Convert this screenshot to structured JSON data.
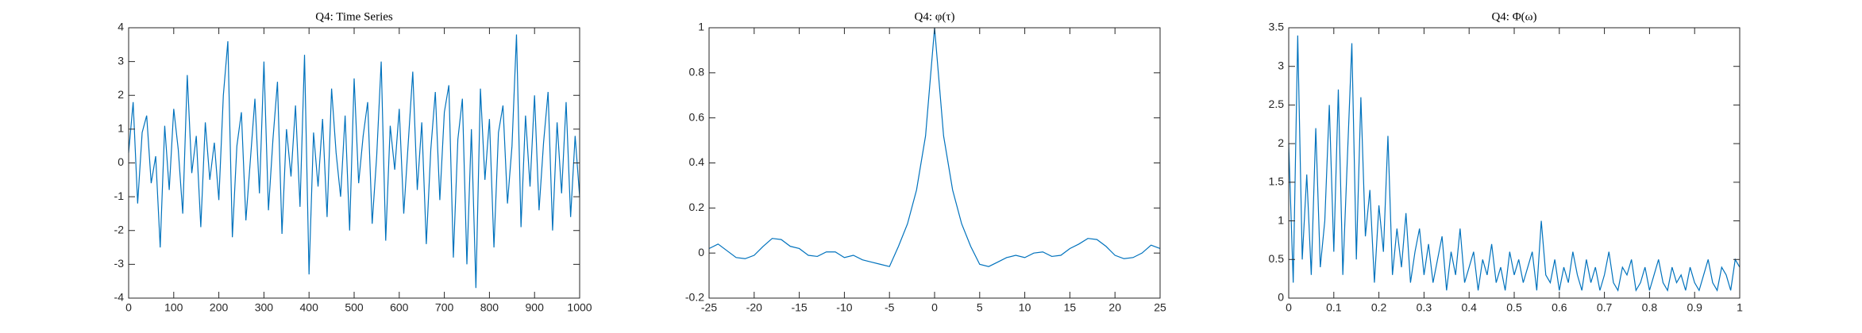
{
  "chart_data": [
    {
      "type": "line",
      "title": "Q4: Time Series",
      "color": "#0072bd",
      "x": [
        0,
        10,
        20,
        30,
        40,
        50,
        60,
        70,
        80,
        90,
        100,
        110,
        120,
        130,
        140,
        150,
        160,
        170,
        180,
        190,
        200,
        210,
        220,
        230,
        240,
        250,
        260,
        270,
        280,
        290,
        300,
        310,
        320,
        330,
        340,
        350,
        360,
        370,
        380,
        390,
        400,
        410,
        420,
        430,
        440,
        450,
        460,
        470,
        480,
        490,
        500,
        510,
        520,
        530,
        540,
        550,
        560,
        570,
        580,
        590,
        600,
        610,
        620,
        630,
        640,
        650,
        660,
        670,
        680,
        690,
        700,
        710,
        720,
        730,
        740,
        750,
        760,
        770,
        780,
        790,
        800,
        810,
        820,
        830,
        840,
        850,
        860,
        870,
        880,
        890,
        900,
        910,
        920,
        930,
        940,
        950,
        960,
        970,
        980,
        990,
        1000
      ],
      "values": [
        0.3,
        1.8,
        -1.2,
        0.9,
        1.4,
        -0.6,
        0.2,
        -2.5,
        1.1,
        -0.8,
        1.6,
        0.4,
        -1.5,
        2.6,
        -0.3,
        0.8,
        -1.9,
        1.2,
        -0.5,
        0.6,
        -1.1,
        2.0,
        3.6,
        -2.2,
        0.5,
        1.5,
        -1.7,
        0.1,
        1.9,
        -0.9,
        3.0,
        -1.4,
        0.7,
        2.4,
        -2.1,
        1.0,
        -0.4,
        1.7,
        -1.3,
        3.2,
        -3.3,
        0.9,
        -0.7,
        1.3,
        -1.6,
        2.2,
        0.3,
        -1.0,
        1.4,
        -2.0,
        2.5,
        -0.6,
        0.8,
        1.8,
        -1.8,
        0.2,
        3.0,
        -2.3,
        1.1,
        -0.2,
        1.6,
        -1.5,
        0.6,
        2.7,
        -0.8,
        1.2,
        -2.4,
        0.4,
        2.1,
        -1.1,
        1.5,
        2.3,
        -2.8,
        0.7,
        1.9,
        -3.0,
        1.0,
        -3.7,
        2.2,
        -0.5,
        1.3,
        -2.5,
        0.9,
        1.7,
        -1.2,
        0.5,
        3.8,
        -1.9,
        1.4,
        -0.7,
        2.0,
        -1.4,
        0.6,
        2.1,
        -2.0,
        1.2,
        -0.9,
        1.8,
        -1.6,
        0.8,
        -1.0
      ],
      "xlim": [
        0,
        1000
      ],
      "xticks": [
        0,
        100,
        200,
        300,
        400,
        500,
        600,
        700,
        800,
        900,
        1000
      ],
      "ylim": [
        -4,
        4
      ],
      "yticks": [
        -4,
        -3,
        -2,
        -1,
        0,
        1,
        2,
        3,
        4
      ]
    },
    {
      "type": "line",
      "title": "Q4: φ(τ)",
      "color": "#0072bd",
      "x": [
        -25,
        -24,
        -23,
        -22,
        -21,
        -20,
        -19,
        -18,
        -17,
        -16,
        -15,
        -14,
        -13,
        -12,
        -11,
        -10,
        -9,
        -8,
        -7,
        -6,
        -5,
        -4,
        -3,
        -2,
        -1,
        0,
        1,
        2,
        3,
        4,
        5,
        6,
        7,
        8,
        9,
        10,
        11,
        12,
        13,
        14,
        15,
        16,
        17,
        18,
        19,
        20,
        21,
        22,
        23,
        24,
        25
      ],
      "values": [
        0.02,
        0.04,
        0.01,
        -0.02,
        -0.025,
        -0.01,
        0.03,
        0.065,
        0.06,
        0.03,
        0.02,
        -0.01,
        -0.015,
        0.005,
        0.005,
        -0.02,
        -0.01,
        -0.03,
        -0.04,
        -0.05,
        -0.06,
        0.03,
        0.13,
        0.28,
        0.52,
        1,
        0.52,
        0.28,
        0.13,
        0.03,
        -0.05,
        -0.06,
        -0.04,
        -0.02,
        -0.01,
        -0.02,
        0,
        0.005,
        -0.015,
        -0.01,
        0.02,
        0.04,
        0.065,
        0.06,
        0.03,
        -0.01,
        -0.025,
        -0.02,
        0,
        0.035,
        0.02
      ],
      "xlim": [
        -25,
        25
      ],
      "xticks": [
        -25,
        -20,
        -15,
        -10,
        -5,
        0,
        5,
        10,
        15,
        20,
        25
      ],
      "ylim": [
        -0.2,
        1
      ],
      "yticks": [
        -0.2,
        0,
        0.2,
        0.4,
        0.6,
        0.8,
        1
      ]
    },
    {
      "type": "line",
      "title": "Q4: Φ(ω)",
      "color": "#0072bd",
      "x": [
        0,
        0.01,
        0.02,
        0.03,
        0.04,
        0.05,
        0.06,
        0.07,
        0.08,
        0.09,
        0.1,
        0.11,
        0.12,
        0.13,
        0.14,
        0.15,
        0.16,
        0.17,
        0.18,
        0.19,
        0.2,
        0.21,
        0.22,
        0.23,
        0.24,
        0.25,
        0.26,
        0.27,
        0.28,
        0.29,
        0.3,
        0.31,
        0.32,
        0.33,
        0.34,
        0.35,
        0.36,
        0.37,
        0.38,
        0.39,
        0.4,
        0.41,
        0.42,
        0.43,
        0.44,
        0.45,
        0.46,
        0.47,
        0.48,
        0.49,
        0.5,
        0.51,
        0.52,
        0.53,
        0.54,
        0.55,
        0.56,
        0.57,
        0.58,
        0.59,
        0.6,
        0.61,
        0.62,
        0.63,
        0.64,
        0.65,
        0.66,
        0.67,
        0.68,
        0.69,
        0.7,
        0.71,
        0.72,
        0.73,
        0.74,
        0.75,
        0.76,
        0.77,
        0.78,
        0.79,
        0.8,
        0.81,
        0.82,
        0.83,
        0.84,
        0.85,
        0.86,
        0.87,
        0.88,
        0.89,
        0.9,
        0.91,
        0.92,
        0.93,
        0.94,
        0.95,
        0.96,
        0.97,
        0.98,
        0.99,
        1
      ],
      "values": [
        2.0,
        0.2,
        3.4,
        0.5,
        1.6,
        0.3,
        2.2,
        0.4,
        1.0,
        2.5,
        0.6,
        2.7,
        0.3,
        1.8,
        3.3,
        0.5,
        2.6,
        0.8,
        1.4,
        0.2,
        1.2,
        0.6,
        2.1,
        0.3,
        0.9,
        0.4,
        1.1,
        0.2,
        0.6,
        0.9,
        0.3,
        0.7,
        0.2,
        0.5,
        0.8,
        0.1,
        0.6,
        0.3,
        0.9,
        0.2,
        0.4,
        0.6,
        0.1,
        0.5,
        0.3,
        0.7,
        0.2,
        0.4,
        0.1,
        0.6,
        0.3,
        0.5,
        0.2,
        0.4,
        0.6,
        0.1,
        1.0,
        0.3,
        0.2,
        0.5,
        0.1,
        0.4,
        0.2,
        0.6,
        0.3,
        0.1,
        0.5,
        0.2,
        0.4,
        0.1,
        0.3,
        0.6,
        0.2,
        0.1,
        0.4,
        0.3,
        0.5,
        0.1,
        0.2,
        0.4,
        0.1,
        0.3,
        0.5,
        0.2,
        0.1,
        0.4,
        0.2,
        0.3,
        0.1,
        0.4,
        0.2,
        0.1,
        0.3,
        0.5,
        0.2,
        0.1,
        0.4,
        0.3,
        0.1,
        0.5,
        0.4
      ],
      "xlim": [
        0,
        1
      ],
      "xticks": [
        0,
        0.1,
        0.2,
        0.3,
        0.4,
        0.5,
        0.6,
        0.7,
        0.8,
        0.9,
        1
      ],
      "ylim": [
        0,
        3.5
      ],
      "yticks": [
        0,
        0.5,
        1,
        1.5,
        2,
        2.5,
        3,
        3.5
      ]
    }
  ]
}
